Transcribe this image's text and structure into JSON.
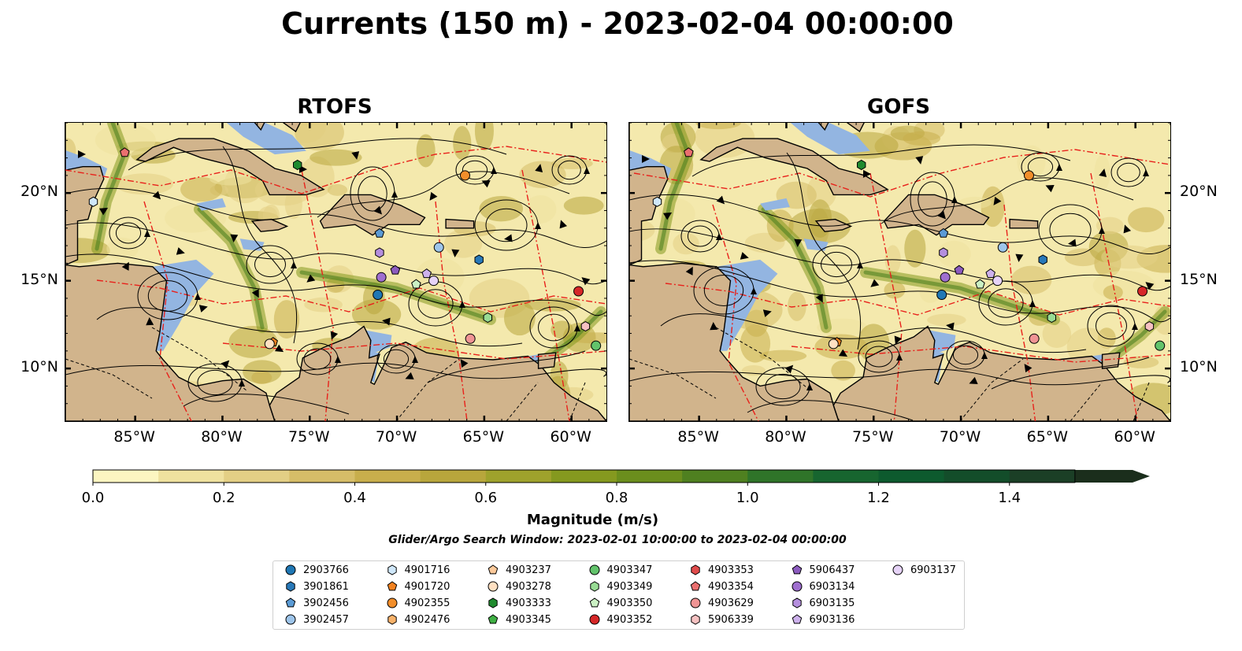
{
  "title": "Currents (150 m) - 2023-02-04 00:00:00",
  "panels": [
    {
      "id": "rtofs",
      "title": "RTOFS"
    },
    {
      "id": "gofs",
      "title": "GOFS"
    }
  ],
  "axes": {
    "x_ticks": [
      "85°W",
      "80°W",
      "75°W",
      "70°W",
      "65°W",
      "60°W"
    ],
    "y_ticks": [
      "20°N",
      "15°N",
      "10°N"
    ],
    "lon_range": [
      -89,
      -58
    ],
    "lat_range": [
      7,
      24
    ]
  },
  "colorbar": {
    "label": "Magnitude (m/s)",
    "ticks": [
      "0.0",
      "0.2",
      "0.4",
      "0.6",
      "0.8",
      "1.0",
      "1.2",
      "1.4"
    ],
    "range": [
      0,
      1.5
    ],
    "extend": "max",
    "colors": [
      "#fcf5c1",
      "#efe19f",
      "#e3cf85",
      "#d6bd68",
      "#c8ae4c",
      "#b8a63c",
      "#9fa22c",
      "#85991f",
      "#6b8e1d",
      "#4f8020",
      "#2f7429",
      "#17652f",
      "#0d5a2e",
      "#134d2a",
      "#1b3f26",
      "#1b2e1c"
    ]
  },
  "search_window": "Glider/Argo Search Window: 2023-02-01 10:00:00 to 2023-02-04 00:00:00",
  "colors": {
    "land": "#d1b48c",
    "shallow_water": "#93b5e1",
    "streamline": "#000000",
    "eez_boundary": "#e8211b",
    "land_border": "#000000"
  },
  "legend": [
    {
      "id": "2903766",
      "marker": "circle",
      "color": "#1f77b4"
    },
    {
      "id": "3901861",
      "marker": "hexagon",
      "color": "#2878b8"
    },
    {
      "id": "3902456",
      "marker": "pentagon",
      "color": "#5b9bd5"
    },
    {
      "id": "3902457",
      "marker": "circle",
      "color": "#9ec5ea"
    },
    {
      "id": "4901716",
      "marker": "hexagon",
      "color": "#cfe7fa"
    },
    {
      "id": "4901720",
      "marker": "pentagon",
      "color": "#f28220"
    },
    {
      "id": "4902355",
      "marker": "circle",
      "color": "#f28e2b"
    },
    {
      "id": "4902476",
      "marker": "hexagon",
      "color": "#f8b26a"
    },
    {
      "id": "4903237",
      "marker": "pentagon",
      "color": "#fcc99a"
    },
    {
      "id": "4903278",
      "marker": "circle",
      "color": "#ffe0c2"
    },
    {
      "id": "4903333",
      "marker": "hexagon",
      "color": "#1f8a2e"
    },
    {
      "id": "4903345",
      "marker": "pentagon",
      "color": "#3fb044"
    },
    {
      "id": "4903347",
      "marker": "circle",
      "color": "#62c36b"
    },
    {
      "id": "4903349",
      "marker": "hexagon",
      "color": "#98dc94"
    },
    {
      "id": "4903350",
      "marker": "pentagon",
      "color": "#cbf1c4"
    },
    {
      "id": "4903352",
      "marker": "circle",
      "color": "#d62728"
    },
    {
      "id": "4903353",
      "marker": "hexagon",
      "color": "#e04b4b"
    },
    {
      "id": "4903354",
      "marker": "pentagon",
      "color": "#ea6f6f"
    },
    {
      "id": "4903629",
      "marker": "circle",
      "color": "#f09494"
    },
    {
      "id": "5906339",
      "marker": "hexagon",
      "color": "#f6c1c1"
    },
    {
      "id": "5906437",
      "marker": "pentagon",
      "color": "#8c5bbf"
    },
    {
      "id": "6903134",
      "marker": "circle",
      "color": "#9f6fcf"
    },
    {
      "id": "6903135",
      "marker": "hexagon",
      "color": "#b58fde"
    },
    {
      "id": "6903136",
      "marker": "pentagon",
      "color": "#cdb1ec"
    },
    {
      "id": "6903137",
      "marker": "circle",
      "color": "#e6d3f7"
    }
  ],
  "floats": [
    {
      "marker": "pentagon",
      "color": "#ea6f6f",
      "lon": -85.6,
      "lat": 22.3
    },
    {
      "marker": "hexagon",
      "color": "#cfe7fa",
      "lon": -87.4,
      "lat": 19.5
    },
    {
      "marker": "hexagon",
      "color": "#1f8a2e",
      "lon": -75.7,
      "lat": 21.6
    },
    {
      "marker": "circle",
      "color": "#f28e2b",
      "lon": -66.1,
      "lat": 21.0
    },
    {
      "marker": "pentagon",
      "color": "#5b9bd5",
      "lon": -71.0,
      "lat": 17.7
    },
    {
      "marker": "circle",
      "color": "#9ec5ea",
      "lon": -67.6,
      "lat": 16.9
    },
    {
      "marker": "hexagon",
      "color": "#2878b8",
      "lon": -65.3,
      "lat": 16.2
    },
    {
      "marker": "hexagon",
      "color": "#b58fde",
      "lon": -71.0,
      "lat": 16.6
    },
    {
      "marker": "pentagon",
      "color": "#8c5bbf",
      "lon": -70.1,
      "lat": 15.6
    },
    {
      "marker": "circle",
      "color": "#9f6fcf",
      "lon": -70.9,
      "lat": 15.2
    },
    {
      "marker": "pentagon",
      "color": "#cbf1c4",
      "lon": -68.9,
      "lat": 14.8
    },
    {
      "marker": "pentagon",
      "color": "#cdb1ec",
      "lon": -68.3,
      "lat": 15.4
    },
    {
      "marker": "circle",
      "color": "#e6d3f7",
      "lon": -67.9,
      "lat": 15.0
    },
    {
      "marker": "circle",
      "color": "#1f77b4",
      "lon": -71.1,
      "lat": 14.2
    },
    {
      "marker": "circle",
      "color": "#d62728",
      "lon": -59.6,
      "lat": 14.4
    },
    {
      "marker": "hexagon",
      "color": "#98dc94",
      "lon": -64.8,
      "lat": 12.9
    },
    {
      "marker": "hexagon",
      "color": "#f6c1c1",
      "lon": -59.2,
      "lat": 12.4
    },
    {
      "marker": "circle",
      "color": "#f09494",
      "lon": -65.8,
      "lat": 11.7
    },
    {
      "marker": "circle",
      "color": "#62c36b",
      "lon": -58.6,
      "lat": 11.3
    },
    {
      "marker": "pentagon",
      "color": "#f28220",
      "lon": -77.1,
      "lat": 11.5
    },
    {
      "marker": "circle",
      "color": "#ffe0c2",
      "lon": -77.3,
      "lat": 11.4
    }
  ]
}
